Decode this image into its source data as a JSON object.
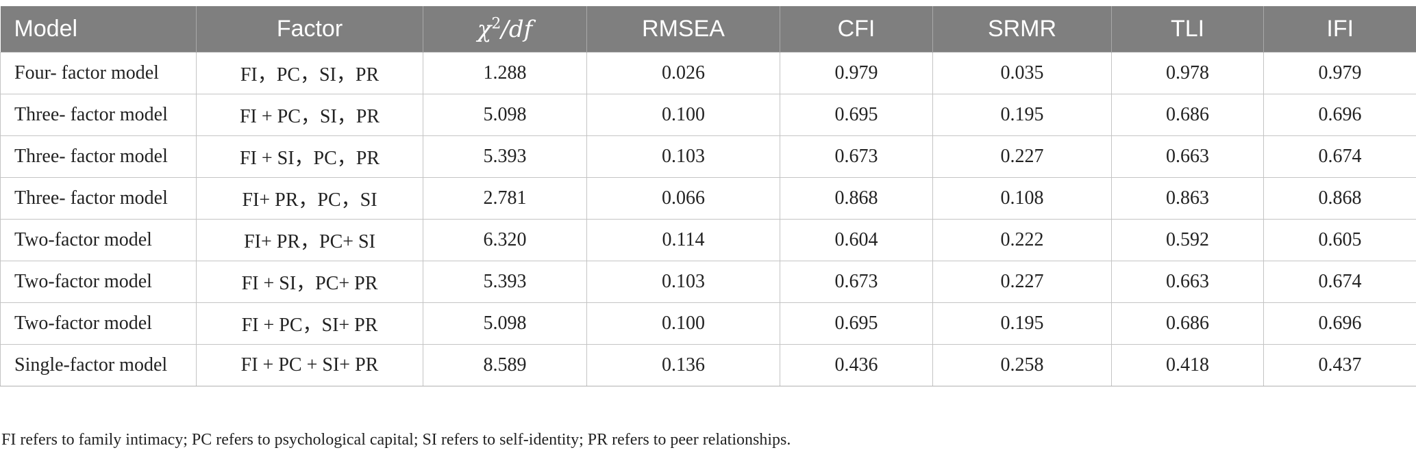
{
  "table": {
    "headers": {
      "model": "Model",
      "factor": "Factor",
      "chi_symbol": "χ",
      "chi_sup": "2",
      "chi_rest": "/df",
      "rmsea": "RMSEA",
      "cfi": "CFI",
      "srmr": "SRMR",
      "tli": "TLI",
      "ifi": "IFI"
    },
    "rows": [
      {
        "model": "Four- factor model",
        "factor": "FI，PC，SI，PR",
        "chi": "1.288",
        "rmsea": "0.026",
        "cfi": "0.979",
        "srmr": "0.035",
        "tli": "0.978",
        "ifi": "0.979"
      },
      {
        "model": "Three- factor model",
        "factor": "FI + PC，SI，PR",
        "chi": "5.098",
        "rmsea": "0.100",
        "cfi": "0.695",
        "srmr": "0.195",
        "tli": "0.686",
        "ifi": "0.696"
      },
      {
        "model": "Three- factor model",
        "factor": "FI + SI，PC，PR",
        "chi": "5.393",
        "rmsea": "0.103",
        "cfi": "0.673",
        "srmr": "0.227",
        "tli": "0.663",
        "ifi": "0.674"
      },
      {
        "model": "Three- factor model",
        "factor": "FI+ PR，PC，SI",
        "chi": "2.781",
        "rmsea": "0.066",
        "cfi": "0.868",
        "srmr": "0.108",
        "tli": "0.863",
        "ifi": "0.868"
      },
      {
        "model": "Two-factor model",
        "factor": "FI+ PR，PC+ SI",
        "chi": "6.320",
        "rmsea": "0.114",
        "cfi": "0.604",
        "srmr": "0.222",
        "tli": "0.592",
        "ifi": "0.605"
      },
      {
        "model": "Two-factor model",
        "factor": "FI + SI，PC+ PR",
        "chi": "5.393",
        "rmsea": "0.103",
        "cfi": "0.673",
        "srmr": "0.227",
        "tli": "0.663",
        "ifi": "0.674"
      },
      {
        "model": "Two-factor model",
        "factor": "FI + PC，SI+ PR",
        "chi": "5.098",
        "rmsea": "0.100",
        "cfi": "0.695",
        "srmr": "0.195",
        "tli": "0.686",
        "ifi": "0.696"
      },
      {
        "model": "Single-factor model",
        "factor": "FI + PC + SI+ PR",
        "chi": "8.589",
        "rmsea": "0.136",
        "cfi": "0.436",
        "srmr": "0.258",
        "tli": "0.418",
        "ifi": "0.437"
      }
    ]
  },
  "footnote": "FI refers to family intimacy; PC refers to psychological capital; SI refers to self-identity; PR refers to peer relationships.",
  "colors": {
    "header_bg": "#7f7f7f",
    "header_text": "#ffffff",
    "cell_border": "#c4c4c4"
  }
}
